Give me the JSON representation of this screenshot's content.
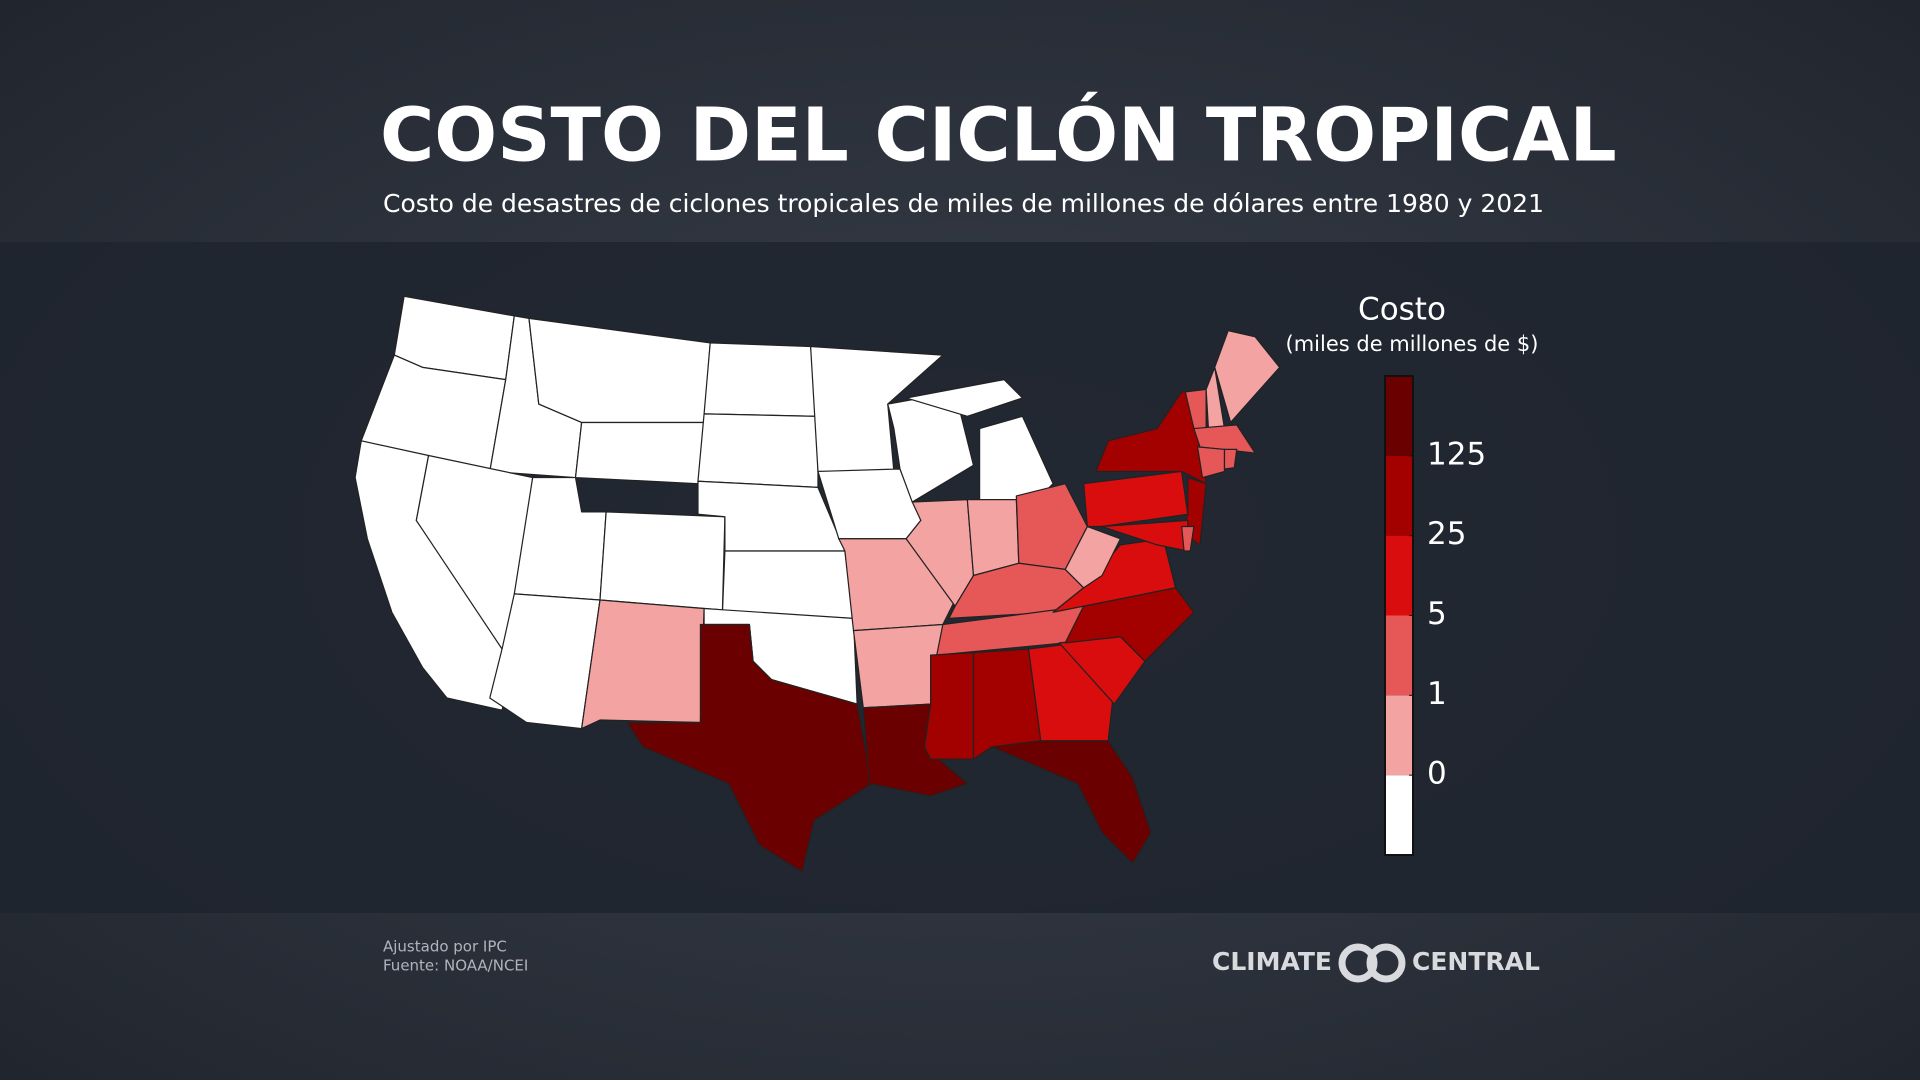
{
  "title": "COSTO DEL CICLÓN TROPICAL",
  "subtitle": "Costo de desastres de ciclones tropicales de miles de millones de dólares entre 1980 y 2021",
  "legend": {
    "title": "Costo",
    "subtitle": "(miles de millones de $)",
    "ticks": [
      0,
      1,
      5,
      25,
      125
    ],
    "colors": [
      "#ffffff",
      "#f4a3a3",
      "#e65858",
      "#d90d0d",
      "#a30000",
      "#6b0000"
    ]
  },
  "footnotes": [
    "Ajustado por IPC",
    "Fuente: NOAA/NCEI"
  ],
  "logo": {
    "left": "CLIMATE",
    "right": "CENTRAL"
  }
}
